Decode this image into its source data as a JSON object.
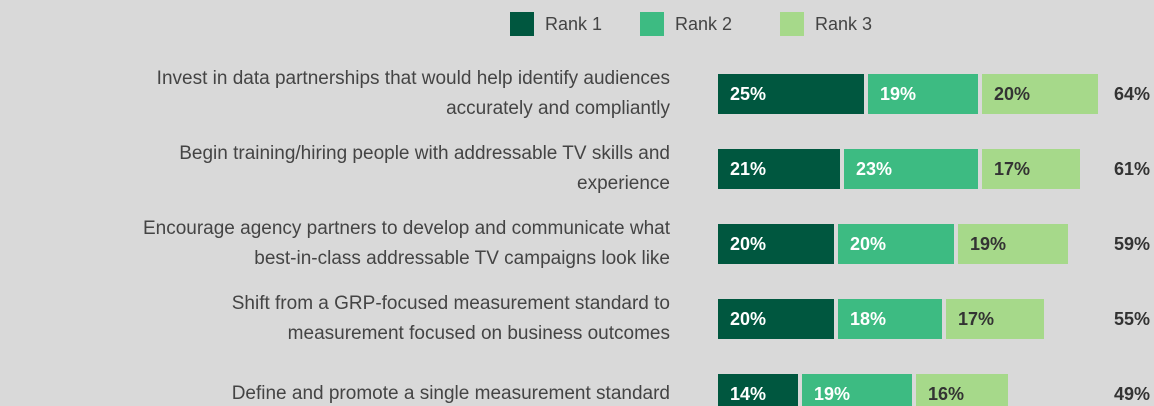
{
  "chart_data": {
    "type": "stacked-bar-horizontal",
    "categories": [
      [
        "Invest in data partnerships that would help identify audiences",
        "accurately and compliantly"
      ],
      [
        "Begin training/hiring people with addressable TV skills and",
        "experience"
      ],
      [
        "Encourage agency partners to develop and communicate what",
        "best-in-class addressable TV campaigns look like"
      ],
      [
        "Shift from a GRP-focused measurement standard to",
        "measurement focused on business outcomes"
      ],
      [
        "Define and promote a single measurement standard"
      ]
    ],
    "series": [
      {
        "name": "Rank 1",
        "color": "#00573f",
        "label_color": "#ffffff",
        "values": [
          25,
          21,
          20,
          20,
          14
        ],
        "value_labels": [
          "25%",
          "21%",
          "20%",
          "20%",
          "14%"
        ]
      },
      {
        "name": "Rank 2",
        "color": "#3dbb82",
        "label_color": "#ffffff",
        "values": [
          19,
          23,
          20,
          18,
          19
        ],
        "value_labels": [
          "19%",
          "23%",
          "20%",
          "18%",
          "19%"
        ]
      },
      {
        "name": "Rank 3",
        "color": "#a6d98a",
        "label_color": "#333333",
        "values": [
          20,
          17,
          19,
          17,
          16
        ],
        "value_labels": [
          "20%",
          "17%",
          "19%",
          "17%",
          "16%"
        ]
      }
    ],
    "totals": [
      64,
      61,
      59,
      55,
      49
    ],
    "total_labels": [
      "64%",
      "61%",
      "59%",
      "55%",
      "49%"
    ]
  }
}
